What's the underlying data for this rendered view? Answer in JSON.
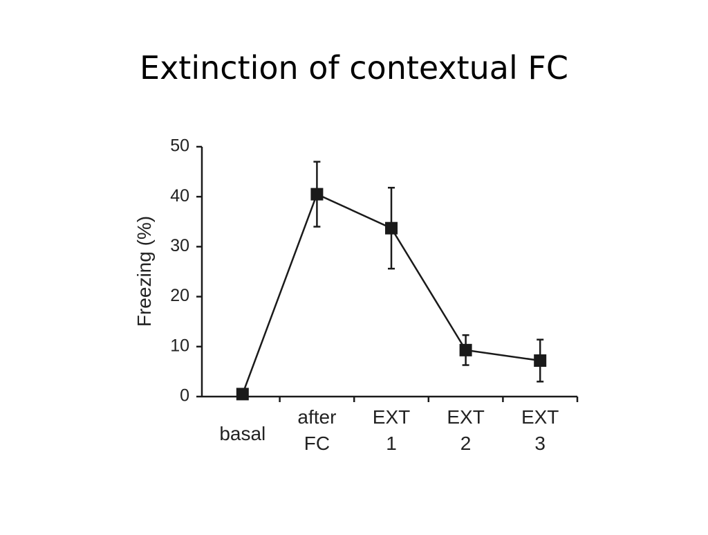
{
  "chart_data": {
    "type": "line",
    "title": "Extinction of contextual FC",
    "y_label": "Freezing (%)",
    "categories": [
      [
        "basal"
      ],
      [
        "after",
        "FC"
      ],
      [
        "EXT",
        "1"
      ],
      [
        "EXT",
        "2"
      ],
      [
        "EXT",
        "3"
      ]
    ],
    "values": [
      0.5,
      40.5,
      33.7,
      9.3,
      7.2
    ],
    "errors": [
      0,
      6.5,
      8.1,
      3,
      4.2
    ],
    "color": "#1a1a1a",
    "ylim": [
      0,
      50
    ],
    "yticks": [
      0,
      10,
      20,
      30,
      40,
      50
    ]
  }
}
